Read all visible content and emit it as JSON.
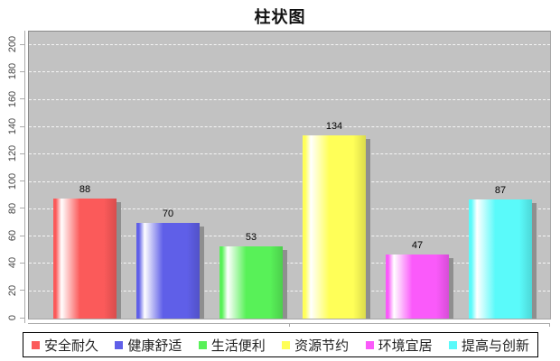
{
  "chart_data": {
    "type": "bar",
    "title": "柱状图",
    "categories": [
      "安全耐久",
      "健康舒适",
      "生活便利",
      "资源节约",
      "环境宜居",
      "提高与创新"
    ],
    "values": [
      88,
      70,
      53,
      134,
      47,
      87
    ],
    "colors": [
      "#fb5a5a",
      "#5f5fe8",
      "#58f158",
      "#ffff58",
      "#fa5afa",
      "#5afafa"
    ],
    "ylim": [
      0,
      210
    ],
    "yticks": [
      0,
      20,
      40,
      60,
      80,
      100,
      120,
      140,
      160,
      180,
      200
    ],
    "xlabel": "",
    "ylabel": "",
    "grid": "horizontal-dashed-white",
    "legend_position": "bottom",
    "plot_background": "#c2c2c2",
    "shadow_color": "#8f8f8f",
    "highlight_color": "#ffffff"
  }
}
